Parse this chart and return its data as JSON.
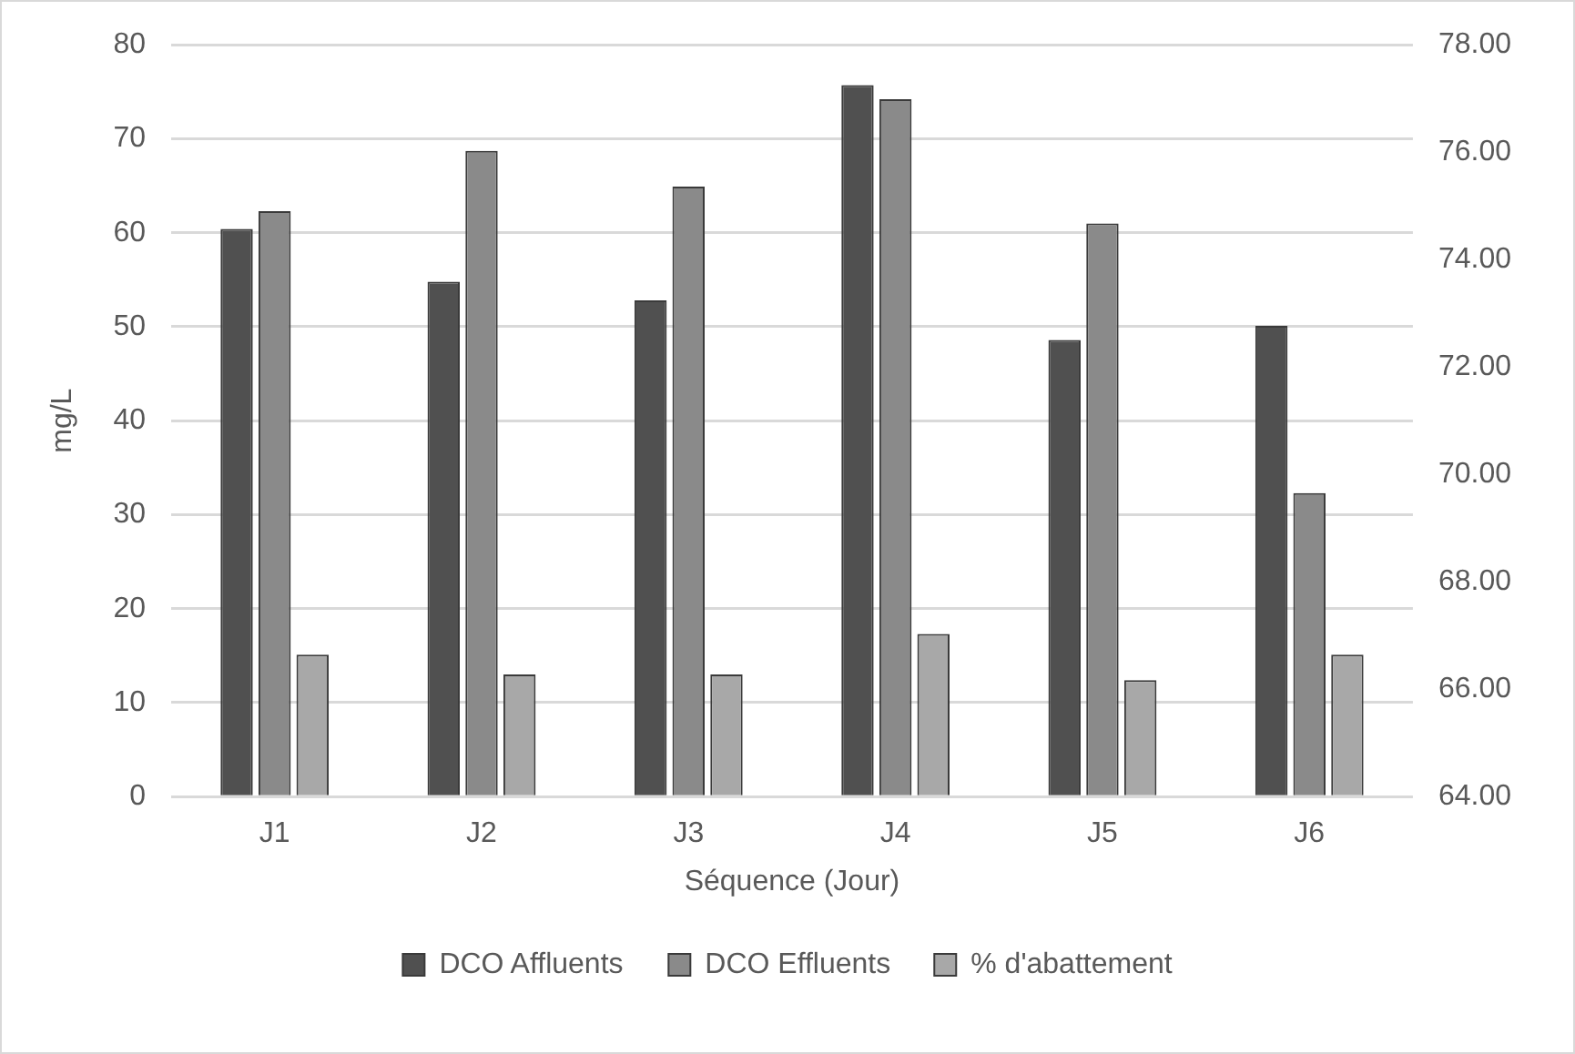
{
  "chart_data": {
    "type": "bar",
    "xlabel": "Séquence (Jour)",
    "ylabel": "mg/L",
    "categories": [
      "J1",
      "J2",
      "J3",
      "J4",
      "J5",
      "J6"
    ],
    "series": [
      {
        "name": "DCO Affluents",
        "color": "#505050",
        "values": [
          60.4,
          54.8,
          52.8,
          75.7,
          48.6,
          50.1
        ]
      },
      {
        "name": "DCO Effluents",
        "color": "#8a8a8a",
        "values": [
          62.3,
          68.7,
          64.9,
          74.2,
          61.0,
          32.3
        ]
      },
      {
        "name": "% d'abattement",
        "color": "#a8a8a8",
        "values": [
          15.1,
          13.0,
          13.0,
          17.3,
          12.4,
          15.1
        ]
      }
    ],
    "ylim": [
      0,
      80
    ],
    "yticks": [
      0,
      10,
      20,
      30,
      40,
      50,
      60,
      70,
      80
    ],
    "y2lim": [
      64,
      78
    ],
    "y2ticks": [
      {
        "value": 64,
        "label": "64.00"
      },
      {
        "value": 66,
        "label": "66.00"
      },
      {
        "value": 68,
        "label": "68.00"
      },
      {
        "value": 70,
        "label": "70.00"
      },
      {
        "value": 72,
        "label": "72.00"
      },
      {
        "value": 74,
        "label": "74.00"
      },
      {
        "value": 76,
        "label": "76.00"
      },
      {
        "value": 78,
        "label": "78.00"
      }
    ],
    "grid": "y",
    "legend": "bottom"
  }
}
